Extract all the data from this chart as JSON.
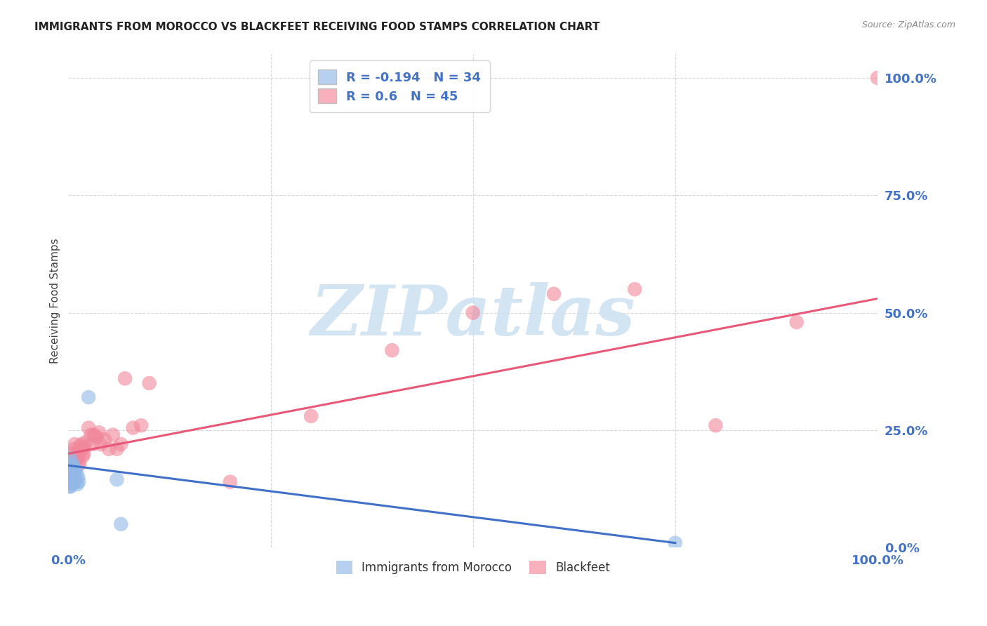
{
  "title": "IMMIGRANTS FROM MOROCCO VS BLACKFEET RECEIVING FOOD STAMPS CORRELATION CHART",
  "source": "Source: ZipAtlas.com",
  "ylabel": "Receiving Food Stamps",
  "xlim": [
    0.0,
    1.0
  ],
  "ylim": [
    0.0,
    1.05
  ],
  "ytick_positions": [
    0.0,
    0.25,
    0.5,
    0.75,
    1.0
  ],
  "ytick_labels": [
    "0.0%",
    "25.0%",
    "50.0%",
    "75.0%",
    "100.0%"
  ],
  "xtick_positions": [
    0.0,
    0.25,
    0.5,
    0.75,
    1.0
  ],
  "xtick_labels": [
    "0.0%",
    "",
    "",
    "",
    "100.0%"
  ],
  "background_color": "#ffffff",
  "grid_color": "#d8d8d8",
  "watermark_text": "ZIPatlas",
  "watermark_color": "#cce0f0",
  "morocco_dot_color": "#92b8e8",
  "blackfeet_dot_color": "#f0879a",
  "morocco_line_color": "#4070c8",
  "blackfeet_line_color": "#e85878",
  "morocco_legend_color": "#b8d0f0",
  "blackfeet_legend_color": "#f8b0bc",
  "tick_color": "#4472c4",
  "title_color": "#222222",
  "source_color": "#888888",
  "morocco_R": -0.194,
  "morocco_N": 34,
  "blackfeet_R": 0.6,
  "blackfeet_N": 45,
  "morocco_line_x0": 0.0,
  "morocco_line_y0": 0.175,
  "morocco_line_x1": 0.75,
  "morocco_line_y1": 0.01,
  "blackfeet_line_x0": 0.0,
  "blackfeet_line_y0": 0.2,
  "blackfeet_line_x1": 1.0,
  "blackfeet_line_y1": 0.53,
  "morocco_x": [
    0.001,
    0.001,
    0.001,
    0.002,
    0.002,
    0.002,
    0.002,
    0.002,
    0.003,
    0.003,
    0.003,
    0.003,
    0.004,
    0.004,
    0.004,
    0.005,
    0.005,
    0.005,
    0.006,
    0.006,
    0.006,
    0.007,
    0.007,
    0.008,
    0.008,
    0.009,
    0.01,
    0.011,
    0.012,
    0.013,
    0.025,
    0.06,
    0.065,
    0.75
  ],
  "morocco_y": [
    0.13,
    0.15,
    0.17,
    0.14,
    0.155,
    0.165,
    0.175,
    0.19,
    0.13,
    0.145,
    0.16,
    0.175,
    0.135,
    0.155,
    0.17,
    0.14,
    0.16,
    0.18,
    0.145,
    0.165,
    0.17,
    0.155,
    0.17,
    0.145,
    0.165,
    0.14,
    0.16,
    0.135,
    0.15,
    0.14,
    0.32,
    0.145,
    0.05,
    0.01
  ],
  "blackfeet_x": [
    0.002,
    0.003,
    0.004,
    0.005,
    0.006,
    0.007,
    0.008,
    0.009,
    0.01,
    0.011,
    0.012,
    0.013,
    0.014,
    0.015,
    0.016,
    0.017,
    0.018,
    0.019,
    0.02,
    0.022,
    0.025,
    0.028,
    0.03,
    0.032,
    0.035,
    0.038,
    0.04,
    0.045,
    0.05,
    0.055,
    0.06,
    0.065,
    0.07,
    0.08,
    0.09,
    0.1,
    0.2,
    0.3,
    0.4,
    0.5,
    0.6,
    0.7,
    0.8,
    0.9,
    1.0
  ],
  "blackfeet_y": [
    0.16,
    0.19,
    0.17,
    0.2,
    0.175,
    0.21,
    0.22,
    0.185,
    0.19,
    0.2,
    0.175,
    0.195,
    0.18,
    0.215,
    0.22,
    0.21,
    0.195,
    0.2,
    0.215,
    0.225,
    0.255,
    0.24,
    0.22,
    0.24,
    0.235,
    0.245,
    0.22,
    0.23,
    0.21,
    0.24,
    0.21,
    0.22,
    0.36,
    0.255,
    0.26,
    0.35,
    0.14,
    0.28,
    0.42,
    0.5,
    0.54,
    0.55,
    0.26,
    0.48,
    1.0
  ]
}
